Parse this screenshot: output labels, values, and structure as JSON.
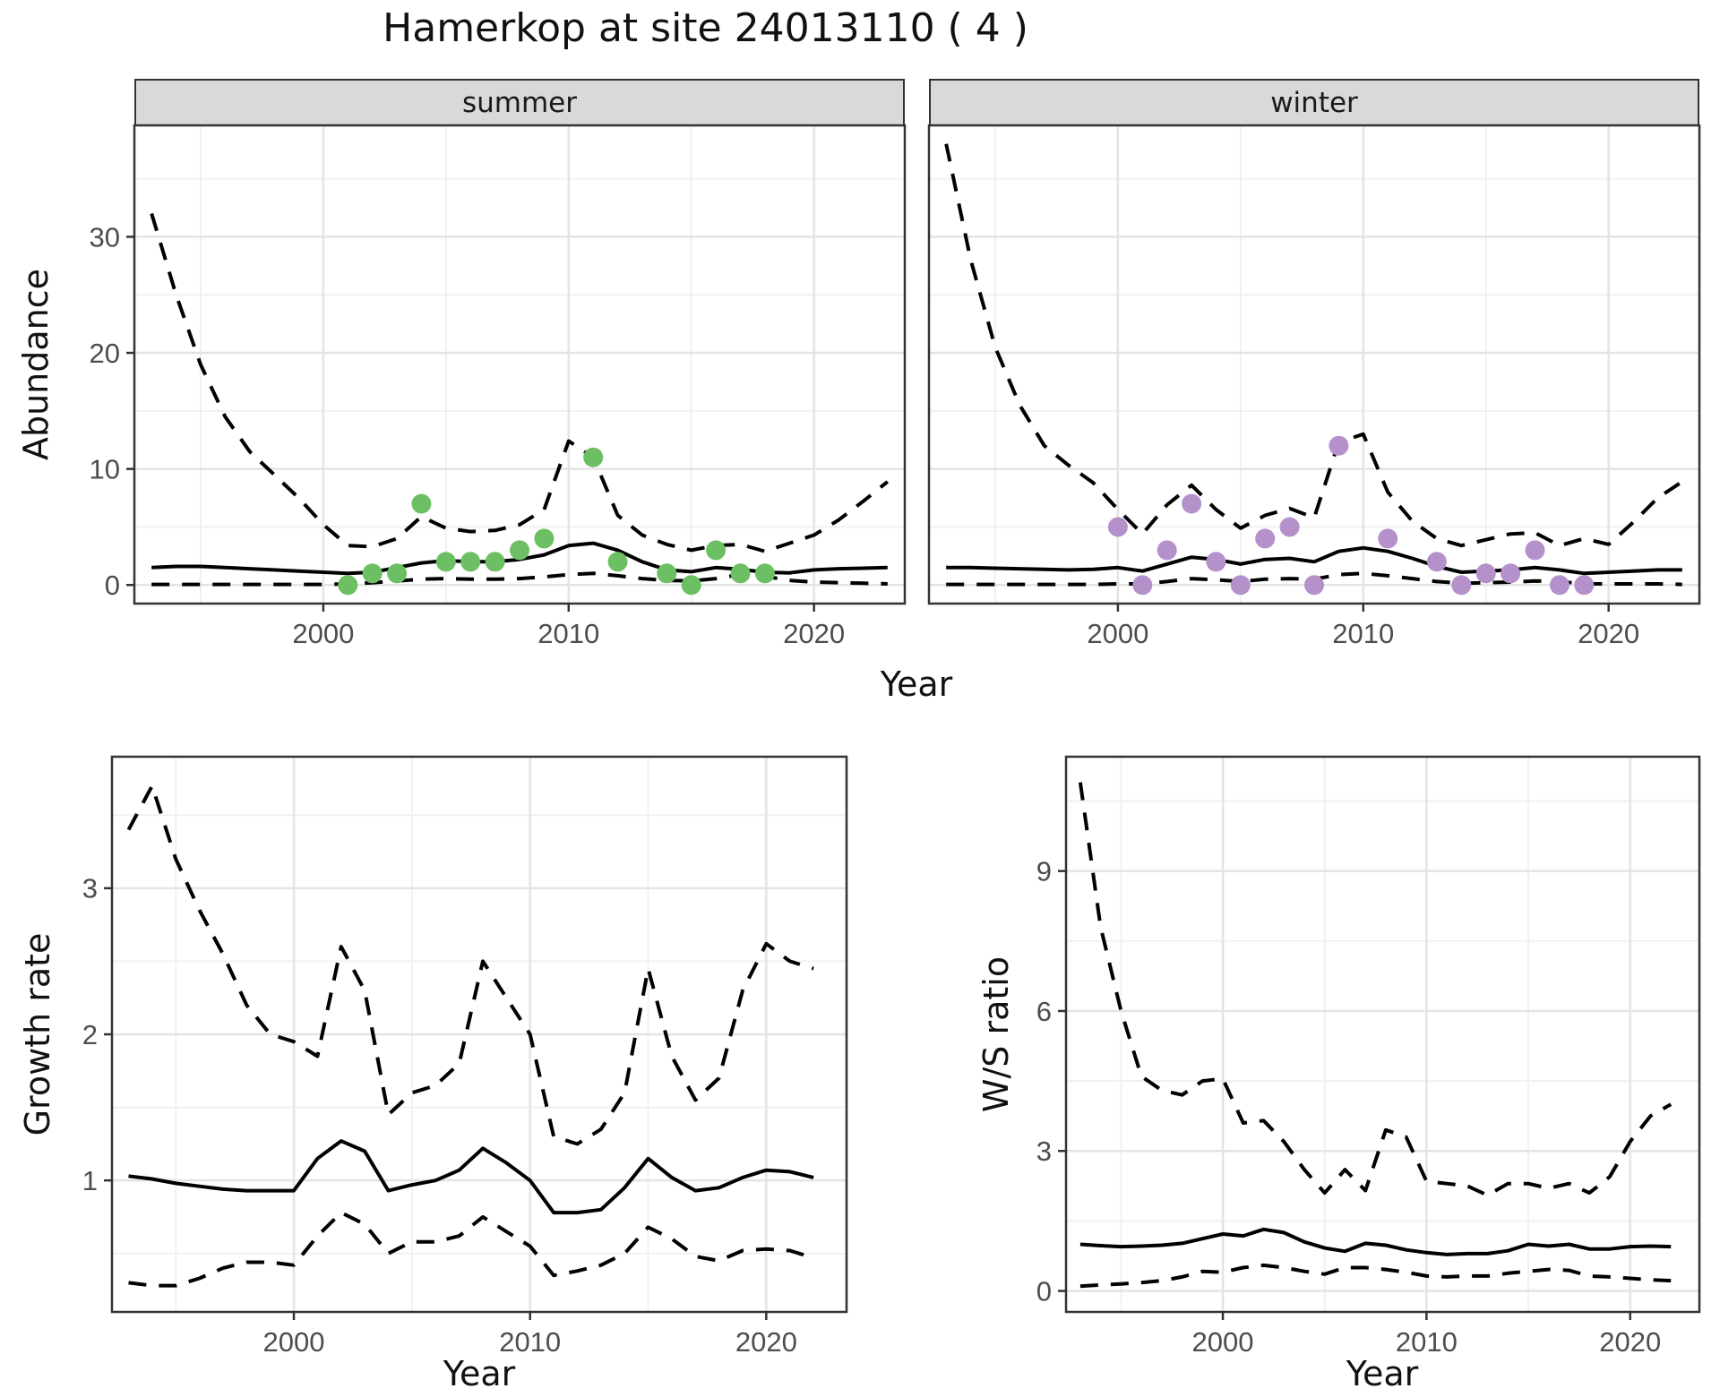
{
  "title": "Hamerkop at site 24013110 ( 4 )",
  "colors": {
    "summer_point": "#6dbf63",
    "winter_point": "#b591cb",
    "line": "#000000",
    "panel_border": "#333333",
    "strip_bg": "#d9d9d9",
    "grid_major": "#e4e4e4",
    "grid_minor": "#f1f1f1",
    "tick_text": "#4d4d4d"
  },
  "chart_data": [
    {
      "type": "line",
      "facet_label": "summer",
      "xlabel": "Year",
      "ylabel": "Abundance",
      "xlim": [
        1992.3,
        2023.7
      ],
      "ylim": [
        -1.6,
        39.6
      ],
      "xticks": [
        2000,
        2010,
        2020
      ],
      "yticks": [
        0,
        10,
        20,
        30
      ],
      "xminor": [
        1995,
        2005,
        2015
      ],
      "yminor": [
        5,
        15,
        25,
        35
      ],
      "years": [
        1993,
        1994,
        1995,
        1996,
        1997,
        1998,
        1999,
        2000,
        2001,
        2002,
        2003,
        2004,
        2005,
        2006,
        2007,
        2008,
        2009,
        2010,
        2011,
        2012,
        2013,
        2014,
        2015,
        2016,
        2017,
        2018,
        2019,
        2020,
        2021,
        2022,
        2023
      ],
      "series": [
        {
          "name": "upper_ci",
          "style": "dashed",
          "values": [
            32,
            25,
            19,
            14.5,
            11.5,
            9.5,
            7.5,
            5.2,
            3.4,
            3.3,
            4.0,
            5.9,
            4.9,
            4.6,
            4.7,
            5.2,
            6.5,
            12.4,
            11.0,
            6.0,
            4.3,
            3.5,
            3.0,
            3.4,
            3.5,
            2.9,
            3.6,
            4.3,
            5.6,
            7.2,
            8.9
          ]
        },
        {
          "name": "mean",
          "style": "solid",
          "values": [
            1.5,
            1.6,
            1.6,
            1.5,
            1.4,
            1.3,
            1.2,
            1.1,
            1.0,
            1.1,
            1.5,
            1.9,
            2.1,
            2.0,
            2.0,
            2.2,
            2.6,
            3.4,
            3.6,
            3.0,
            2.0,
            1.3,
            1.15,
            1.5,
            1.35,
            1.1,
            1.05,
            1.3,
            1.4,
            1.45,
            1.5
          ]
        },
        {
          "name": "lower_ci",
          "style": "dashed",
          "values": [
            0.05,
            0.05,
            0.05,
            0.05,
            0.05,
            0.05,
            0.05,
            0.05,
            0.1,
            0.2,
            0.35,
            0.5,
            0.55,
            0.5,
            0.5,
            0.55,
            0.7,
            0.9,
            1.0,
            0.8,
            0.55,
            0.4,
            0.35,
            0.55,
            0.9,
            0.75,
            0.4,
            0.25,
            0.2,
            0.15,
            0.1
          ]
        }
      ],
      "points": {
        "name": "summer-counts",
        "color": "#6dbf63",
        "data": [
          [
            2001,
            0
          ],
          [
            2002,
            1
          ],
          [
            2003,
            1
          ],
          [
            2004,
            7
          ],
          [
            2005,
            2
          ],
          [
            2006,
            2
          ],
          [
            2007,
            2
          ],
          [
            2008,
            3
          ],
          [
            2009,
            4
          ],
          [
            2011,
            11
          ],
          [
            2012,
            2
          ],
          [
            2014,
            1
          ],
          [
            2015,
            0
          ],
          [
            2016,
            3
          ],
          [
            2017,
            1
          ],
          [
            2018,
            1
          ]
        ]
      }
    },
    {
      "type": "line",
      "facet_label": "winter",
      "xlabel": "Year",
      "ylabel": "Abundance",
      "xlim": [
        1992.3,
        2023.7
      ],
      "ylim": [
        -1.6,
        39.6
      ],
      "xticks": [
        2000,
        2010,
        2020
      ],
      "yticks": [
        0,
        10,
        20,
        30
      ],
      "xminor": [
        1995,
        2005,
        2015
      ],
      "yminor": [
        5,
        15,
        25,
        35
      ],
      "years": [
        1993,
        1994,
        1995,
        1996,
        1997,
        1998,
        1999,
        2000,
        2001,
        2002,
        2003,
        2004,
        2005,
        2006,
        2007,
        2008,
        2009,
        2010,
        2011,
        2012,
        2013,
        2014,
        2015,
        2016,
        2017,
        2018,
        2019,
        2020,
        2021,
        2022,
        2023
      ],
      "series": [
        {
          "name": "upper_ci",
          "style": "dashed",
          "values": [
            38,
            28,
            20.5,
            15.5,
            12,
            10.3,
            8.8,
            6.5,
            4.4,
            6.9,
            8.6,
            6.5,
            4.9,
            6.0,
            6.6,
            5.8,
            12.3,
            13.0,
            8.0,
            5.5,
            4.0,
            3.4,
            3.9,
            4.4,
            4.5,
            3.4,
            4.0,
            3.5,
            5.4,
            7.5,
            8.9
          ]
        },
        {
          "name": "mean",
          "style": "solid",
          "values": [
            1.5,
            1.5,
            1.45,
            1.4,
            1.35,
            1.3,
            1.35,
            1.5,
            1.2,
            1.8,
            2.4,
            2.2,
            1.8,
            2.2,
            2.3,
            2.0,
            2.9,
            3.2,
            2.9,
            2.3,
            1.6,
            1.1,
            1.2,
            1.3,
            1.5,
            1.3,
            1.0,
            1.1,
            1.2,
            1.3,
            1.3
          ]
        },
        {
          "name": "lower_ci",
          "style": "dashed",
          "values": [
            0.05,
            0.05,
            0.05,
            0.05,
            0.05,
            0.05,
            0.05,
            0.1,
            0.1,
            0.3,
            0.55,
            0.45,
            0.3,
            0.5,
            0.55,
            0.5,
            0.9,
            1.0,
            0.8,
            0.55,
            0.3,
            0.15,
            0.2,
            0.25,
            0.35,
            0.3,
            0.1,
            0.1,
            0.1,
            0.1,
            0.05
          ]
        }
      ],
      "points": {
        "name": "winter-counts",
        "color": "#b591cb",
        "data": [
          [
            2000,
            5
          ],
          [
            2001,
            0
          ],
          [
            2002,
            3
          ],
          [
            2003,
            7
          ],
          [
            2004,
            2
          ],
          [
            2005,
            0
          ],
          [
            2006,
            4
          ],
          [
            2007,
            5
          ],
          [
            2008,
            0
          ],
          [
            2009,
            12
          ],
          [
            2011,
            4
          ],
          [
            2013,
            2
          ],
          [
            2014,
            0
          ],
          [
            2015,
            1
          ],
          [
            2016,
            1
          ],
          [
            2017,
            3
          ],
          [
            2018,
            0
          ],
          [
            2019,
            0
          ]
        ]
      }
    },
    {
      "type": "line",
      "xlabel": "Year",
      "ylabel": "Growth rate",
      "xlim": [
        1992.3,
        2023.4
      ],
      "ylim": [
        0.1,
        3.9
      ],
      "xticks": [
        2000,
        2010,
        2020
      ],
      "yticks": [
        1,
        2,
        3
      ],
      "xminor": [
        1995,
        2005,
        2015
      ],
      "yminor": [
        0.5,
        1.5,
        2.5,
        3.5
      ],
      "years": [
        1993,
        1994,
        1995,
        1996,
        1997,
        1998,
        1999,
        2000,
        2001,
        2002,
        2003,
        2004,
        2005,
        2006,
        2007,
        2008,
        2009,
        2010,
        2011,
        2012,
        2013,
        2014,
        2015,
        2016,
        2017,
        2018,
        2019,
        2020,
        2021,
        2022
      ],
      "series": [
        {
          "name": "upper_ci",
          "style": "dashed",
          "values": [
            3.4,
            3.7,
            3.2,
            2.85,
            2.55,
            2.2,
            2.0,
            1.95,
            1.85,
            2.6,
            2.3,
            1.45,
            1.6,
            1.65,
            1.8,
            2.5,
            2.25,
            2.0,
            1.3,
            1.25,
            1.35,
            1.6,
            2.45,
            1.85,
            1.55,
            1.7,
            2.3,
            2.62,
            2.5,
            2.45
          ]
        },
        {
          "name": "mean",
          "style": "solid",
          "values": [
            1.03,
            1.01,
            0.98,
            0.96,
            0.94,
            0.93,
            0.93,
            0.93,
            1.15,
            1.27,
            1.2,
            0.93,
            0.97,
            1.0,
            1.07,
            1.22,
            1.12,
            1.0,
            0.78,
            0.78,
            0.8,
            0.95,
            1.15,
            1.02,
            0.93,
            0.95,
            1.02,
            1.07,
            1.06,
            1.02
          ]
        },
        {
          "name": "lower_ci",
          "style": "dashed",
          "values": [
            0.3,
            0.28,
            0.28,
            0.33,
            0.4,
            0.44,
            0.44,
            0.42,
            0.62,
            0.78,
            0.7,
            0.5,
            0.58,
            0.58,
            0.62,
            0.75,
            0.65,
            0.55,
            0.35,
            0.38,
            0.42,
            0.5,
            0.68,
            0.6,
            0.48,
            0.45,
            0.52,
            0.53,
            0.52,
            0.47
          ]
        }
      ]
    },
    {
      "type": "line",
      "xlabel": "Year",
      "ylabel": "W/S ratio",
      "xlim": [
        1992.3,
        2023.4
      ],
      "ylim": [
        -0.45,
        11.45
      ],
      "xticks": [
        2000,
        2010,
        2020
      ],
      "yticks": [
        0,
        3,
        6,
        9
      ],
      "xminor": [
        1995,
        2005,
        2015
      ],
      "yminor": [
        1.5,
        4.5,
        7.5,
        10.5
      ],
      "years": [
        1993,
        1994,
        1995,
        1996,
        1997,
        1998,
        1999,
        2000,
        2001,
        2002,
        2003,
        2004,
        2005,
        2006,
        2007,
        2008,
        2009,
        2010,
        2011,
        2012,
        2013,
        2014,
        2015,
        2016,
        2017,
        2018,
        2019,
        2020,
        2021,
        2022
      ],
      "series": [
        {
          "name": "upper_ci",
          "style": "dashed",
          "values": [
            10.9,
            7.8,
            6.0,
            4.6,
            4.3,
            4.2,
            4.5,
            4.55,
            3.6,
            3.65,
            3.2,
            2.6,
            2.1,
            2.6,
            2.15,
            3.45,
            3.3,
            2.35,
            2.3,
            2.25,
            2.05,
            2.3,
            2.3,
            2.2,
            2.3,
            2.1,
            2.45,
            3.2,
            3.75,
            4.0
          ]
        },
        {
          "name": "mean",
          "style": "solid",
          "values": [
            1.0,
            0.97,
            0.95,
            0.96,
            0.98,
            1.02,
            1.12,
            1.22,
            1.18,
            1.32,
            1.25,
            1.05,
            0.92,
            0.85,
            1.02,
            0.98,
            0.88,
            0.82,
            0.78,
            0.8,
            0.8,
            0.86,
            1.0,
            0.96,
            1.0,
            0.9,
            0.9,
            0.95,
            0.96,
            0.95
          ]
        },
        {
          "name": "lower_ci",
          "style": "dashed",
          "values": [
            0.1,
            0.13,
            0.15,
            0.18,
            0.22,
            0.3,
            0.42,
            0.4,
            0.5,
            0.55,
            0.5,
            0.42,
            0.36,
            0.5,
            0.5,
            0.46,
            0.4,
            0.32,
            0.3,
            0.32,
            0.32,
            0.38,
            0.42,
            0.46,
            0.44,
            0.32,
            0.3,
            0.27,
            0.24,
            0.22
          ]
        }
      ]
    }
  ]
}
